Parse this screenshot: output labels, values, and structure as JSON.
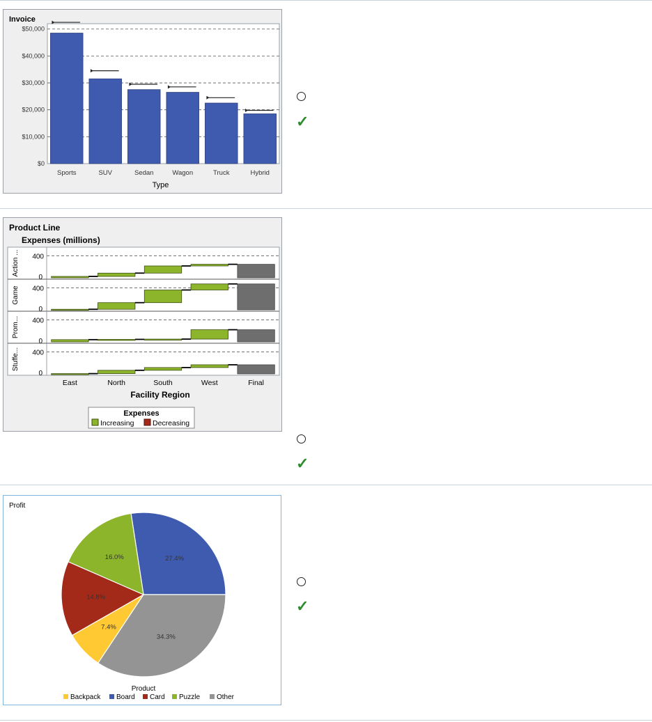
{
  "questions": [
    {
      "id": "q1",
      "chart_data": {
        "type": "bar",
        "title": "Invoice",
        "xlabel": "Type",
        "ylabel": "",
        "categories": [
          "Sports",
          "SUV",
          "Sedan",
          "Wagon",
          "Truck",
          "Hybrid"
        ],
        "values": [
          48500,
          31500,
          27500,
          26500,
          22500,
          18500
        ],
        "targets": [
          52500,
          34500,
          29500,
          28500,
          24500,
          19800
        ],
        "ylim": [
          0,
          52000
        ],
        "yticks": [
          0,
          10000,
          20000,
          30000,
          40000,
          50000
        ],
        "ytick_labels": [
          "$0",
          "$10,000",
          "$20,000",
          "$30,000",
          "$40,000",
          "$50,000"
        ],
        "grid": true,
        "colors": {
          "bar": "#3f5bb0",
          "background": "#efefef",
          "plot": "#ffffff"
        }
      }
    },
    {
      "id": "q2",
      "chart_data": {
        "type": "bar",
        "subtype": "waterfall-panel",
        "title": "Product Line",
        "subtitle": "Expenses (millions)",
        "xlabel": "Facility Region",
        "categories": [
          "East",
          "North",
          "South",
          "West",
          "Final"
        ],
        "ytick_labels": [
          "0",
          "400"
        ],
        "ylim": [
          0,
          480
        ],
        "legend": {
          "title": "Expenses",
          "items": [
            "Increasing",
            "Decreasing"
          ],
          "position": "bottom"
        },
        "panels": [
          {
            "label": "Action ...",
            "increments": [
              25,
              60,
              130,
              30
            ],
            "final": 245
          },
          {
            "label": "Game",
            "increments": [
              10,
              120,
              230,
              110
            ],
            "final": 470
          },
          {
            "label": "Prom...",
            "increments": [
              40,
              5,
              5,
              170
            ],
            "final": 220
          },
          {
            "label": "Stuffe...",
            "increments": [
              5,
              60,
              50,
              50
            ],
            "final": 165
          }
        ],
        "colors": {
          "increasing": "#8db52b",
          "decreasing": "#a32a18",
          "final": "#6e6e6e",
          "background": "#efefef"
        }
      }
    },
    {
      "id": "q3",
      "chart_data": {
        "type": "pie",
        "title": "Profit",
        "legend_title": "Product",
        "slices": [
          {
            "label": "Board",
            "value": 27.4,
            "text": "27.4%",
            "color": "#3f5bb0"
          },
          {
            "label": "Other",
            "value": 34.3,
            "text": "34.3%",
            "color": "#949494"
          },
          {
            "label": "Backpack",
            "value": 7.4,
            "text": "7.4%",
            "color": "#ffc933"
          },
          {
            "label": "Card",
            "value": 14.8,
            "text": "14.8%",
            "color": "#a32a18"
          },
          {
            "label": "Puzzle",
            "value": 16.0,
            "text": "16.0%",
            "color": "#8db52b"
          }
        ],
        "legend_order": [
          "Backpack",
          "Board",
          "Card",
          "Puzzle",
          "Other"
        ]
      }
    }
  ],
  "icons": {
    "radio": "radio-empty-icon",
    "check": "checkmark-icon"
  }
}
